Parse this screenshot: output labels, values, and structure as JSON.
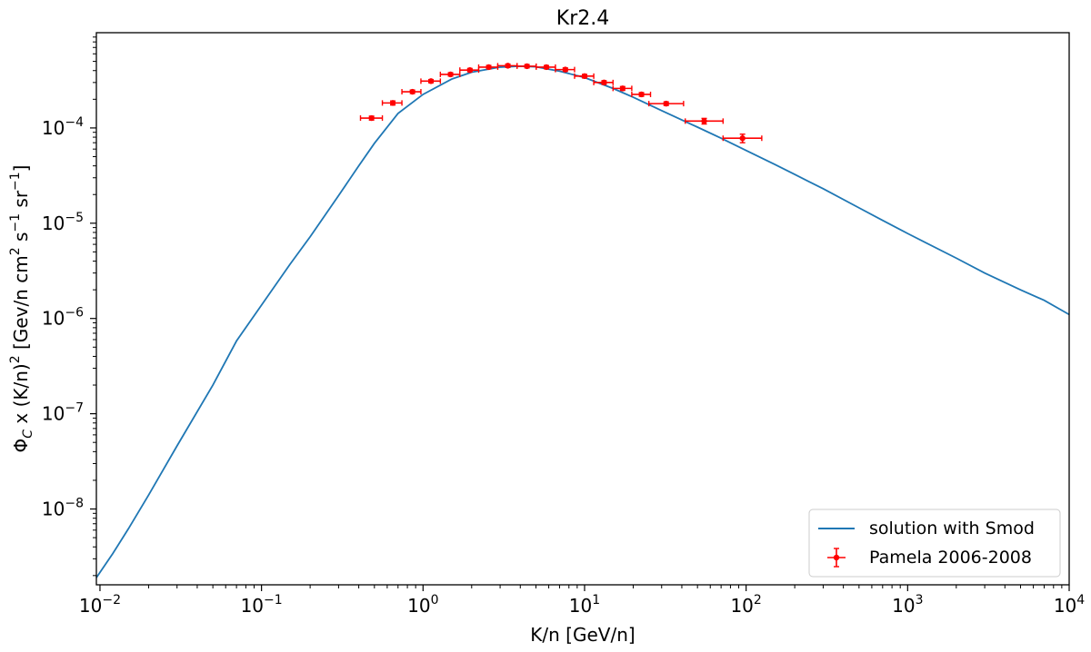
{
  "chart_data": {
    "type": "line",
    "title": "Kr2.4",
    "xlabel": "K/n [GeV/n]",
    "ylabel": "Φ",
    "ylabel_subscript": "C",
    "ylabel_rest": " x (K/n)",
    "ylabel_rest_sup": "2",
    "ylabel_units_a": " [Gev/n cm",
    "ylabel_units_a_sup": "2",
    "ylabel_units_b": " s",
    "ylabel_units_b_sup": "−1",
    "ylabel_units_c": " sr",
    "ylabel_units_c_sup": "−1",
    "ylabel_units_end": "]",
    "x_scale": "log",
    "y_scale": "log",
    "xlim": [
      0.0095,
      10000
    ],
    "ylim": [
      1.6e-09,
      0.001
    ],
    "x_ticks": [
      {
        "value": 0.01,
        "base": "10",
        "exp": "−2"
      },
      {
        "value": 0.1,
        "base": "10",
        "exp": "−1"
      },
      {
        "value": 1,
        "base": "10",
        "exp": "0"
      },
      {
        "value": 10,
        "base": "10",
        "exp": "1"
      },
      {
        "value": 100,
        "base": "10",
        "exp": "2"
      },
      {
        "value": 1000,
        "base": "10",
        "exp": "3"
      },
      {
        "value": 10000,
        "base": "10",
        "exp": "4"
      }
    ],
    "y_ticks": [
      {
        "value": 1e-08,
        "base": "10",
        "exp": "−8"
      },
      {
        "value": 1e-07,
        "base": "10",
        "exp": "−7"
      },
      {
        "value": 1e-06,
        "base": "10",
        "exp": "−6"
      },
      {
        "value": 1e-05,
        "base": "10",
        "exp": "−5"
      },
      {
        "value": 0.0001,
        "base": "10",
        "exp": "−4"
      }
    ],
    "grid": false,
    "legend_position": "lower-right",
    "series": [
      {
        "name": "solution with Smod",
        "kind": "line",
        "color": "#1f77b4",
        "x": [
          0.0095,
          0.012,
          0.015,
          0.02,
          0.03,
          0.05,
          0.07,
          0.1,
          0.15,
          0.2,
          0.3,
          0.4,
          0.5,
          0.7,
          1.0,
          1.5,
          2.0,
          3.0,
          4.0,
          5.0,
          7.0,
          10,
          15,
          20,
          30,
          50,
          70,
          100,
          150,
          200,
          300,
          500,
          700,
          1000,
          2000,
          3000,
          5000,
          7000,
          10000
        ],
        "y": [
          1.9e-09,
          3.4e-09,
          6.2e-09,
          1.4e-08,
          4.6e-08,
          2e-07,
          5.8e-07,
          1.38e-06,
          3.7e-06,
          7.2e-06,
          1.95e-05,
          4e-05,
          6.9e-05,
          0.000142,
          0.000225,
          0.000325,
          0.000385,
          0.000435,
          0.000445,
          0.000438,
          0.000395,
          0.000338,
          0.00026,
          0.00021,
          0.000152,
          0.000102,
          7.8e-05,
          5.8e-05,
          4.15e-05,
          3.25e-05,
          2.3e-05,
          1.45e-05,
          1.07e-05,
          7.8e-06,
          4.3e-06,
          3e-06,
          2e-06,
          1.55e-06,
          1.1e-06
        ]
      },
      {
        "name": "Pamela 2006-2008",
        "kind": "errorbar",
        "color": "#ff0000",
        "x": [
          0.48,
          0.65,
          0.86,
          1.12,
          1.48,
          1.95,
          2.55,
          3.35,
          4.4,
          5.8,
          7.6,
          10.0,
          13.2,
          17.2,
          22.5,
          32,
          55,
          95
        ],
        "y": [
          0.000127,
          0.000183,
          0.00024,
          0.00031,
          0.000365,
          0.000405,
          0.000435,
          0.00045,
          0.000445,
          0.000435,
          0.00041,
          0.00035,
          0.0003,
          0.00026,
          0.000225,
          0.00018,
          0.000118,
          7.8e-05
        ],
        "x_low": [
          0.41,
          0.56,
          0.74,
          0.97,
          1.28,
          1.69,
          2.21,
          2.9,
          3.82,
          5.02,
          6.6,
          8.67,
          11.4,
          15.0,
          19.6,
          25.0,
          42,
          72
        ],
        "x_high": [
          0.56,
          0.74,
          0.97,
          1.28,
          1.69,
          2.21,
          2.9,
          3.82,
          5.02,
          6.6,
          8.67,
          11.4,
          15.0,
          19.6,
          25.6,
          41,
          72,
          125
        ],
        "y_err": [
          6e-06,
          9e-06,
          1e-05,
          1.2e-05,
          1.5e-05,
          1.6e-05,
          1.8e-05,
          1.8e-05,
          1.8e-05,
          1.7e-05,
          1.7e-05,
          1.5e-05,
          1.3e-05,
          1.2e-05,
          1e-05,
          8e-06,
          8e-06,
          8e-06
        ]
      }
    ]
  }
}
